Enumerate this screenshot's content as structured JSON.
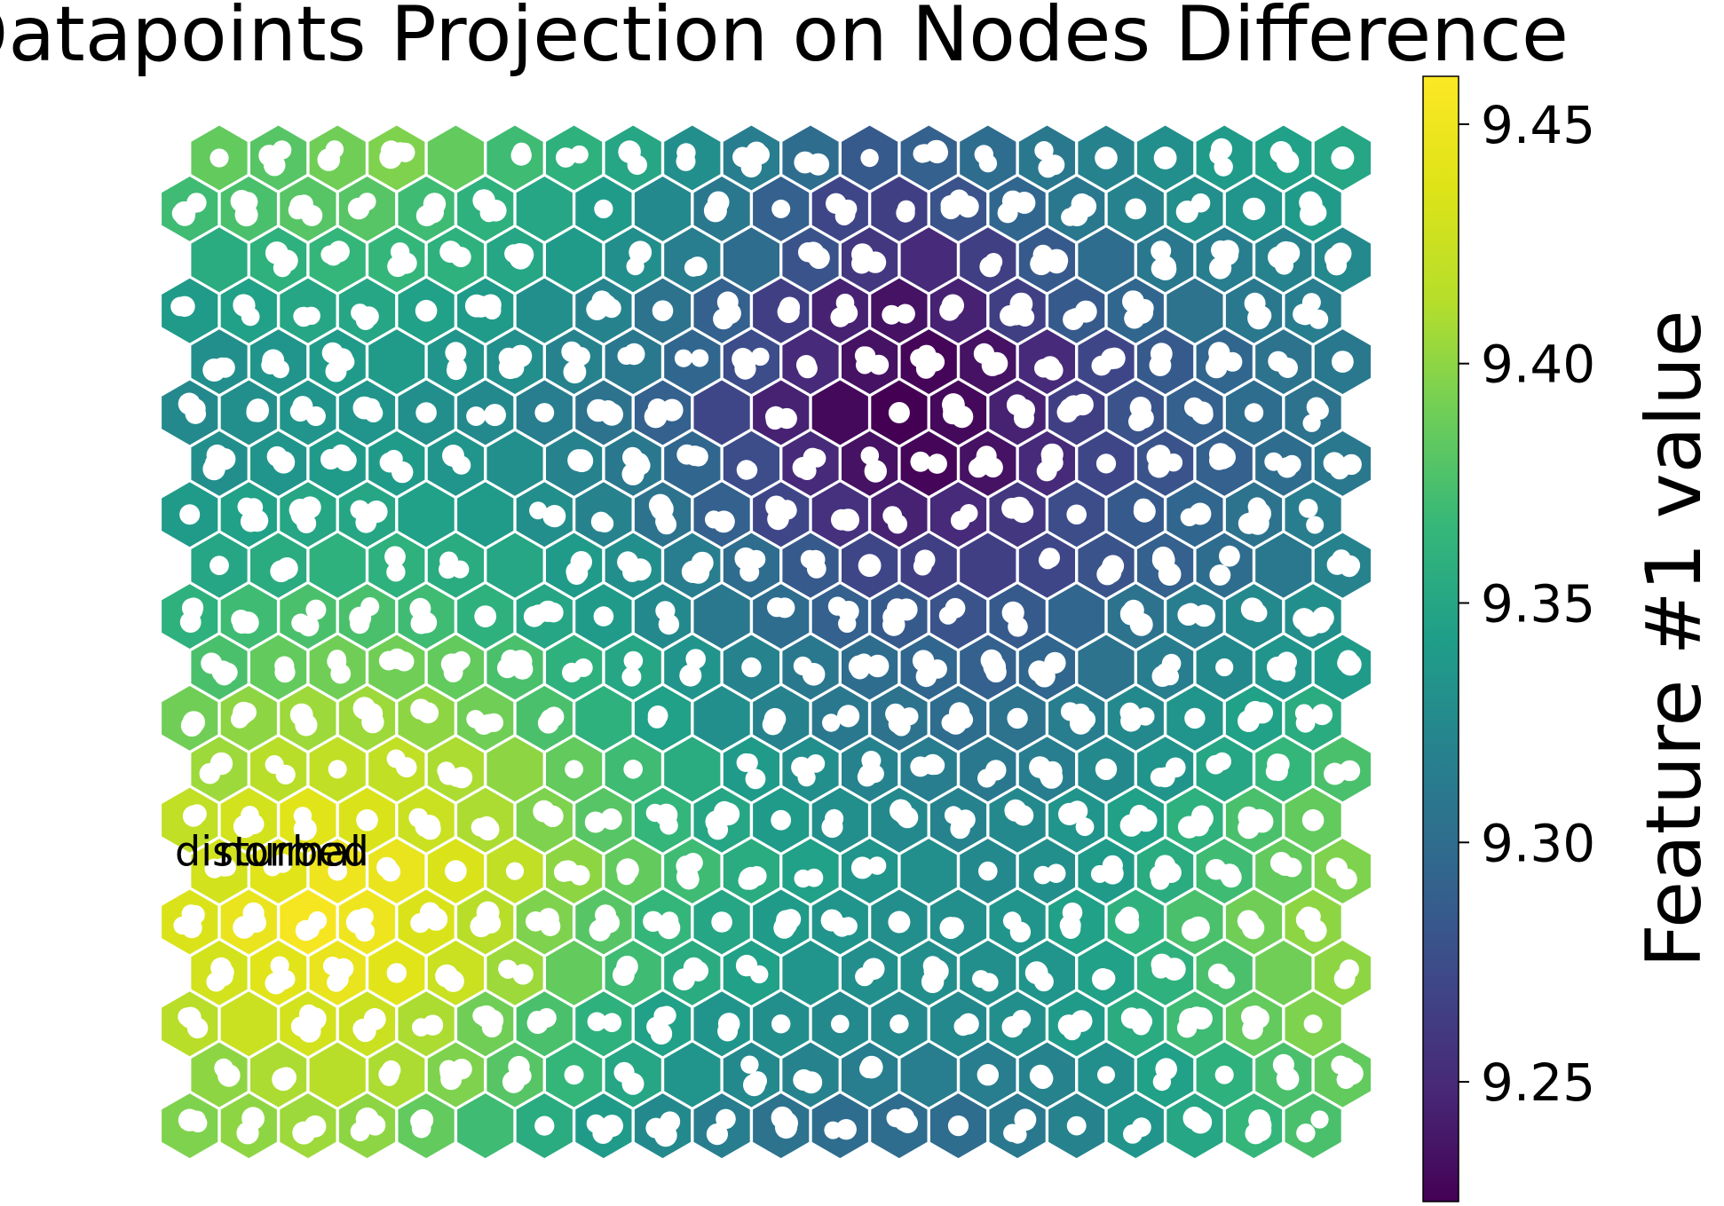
{
  "chart_data": {
    "type": "heatmap",
    "subtype": "hexagonal-som",
    "title": "Datapoints Projection on Nodes Difference",
    "grid": {
      "rows": 20,
      "cols": 20
    },
    "colormap": "viridis",
    "colorbar": {
      "label": "Feature #1 value",
      "range": [
        9.225,
        9.46
      ],
      "ticks": [
        9.25,
        9.3,
        9.35,
        9.4,
        9.45
      ],
      "tick_labels": [
        "9.25",
        "9.30",
        "9.35",
        "9.40",
        "9.45"
      ]
    },
    "node_values": [
      [
        9.385,
        9.38,
        9.39,
        9.395,
        9.385,
        9.37,
        9.36,
        9.35,
        9.33,
        9.315,
        9.3,
        9.285,
        9.29,
        9.3,
        9.31,
        9.32,
        9.33,
        9.34,
        9.345,
        9.35
      ],
      [
        9.37,
        9.375,
        9.38,
        9.38,
        9.37,
        9.36,
        9.35,
        9.34,
        9.325,
        9.31,
        9.29,
        9.27,
        9.265,
        9.28,
        9.295,
        9.31,
        9.32,
        9.33,
        9.335,
        9.34
      ],
      [
        9.355,
        9.36,
        9.365,
        9.365,
        9.36,
        9.35,
        9.34,
        9.33,
        9.315,
        9.3,
        9.28,
        9.26,
        9.25,
        9.265,
        9.285,
        9.3,
        9.31,
        9.315,
        9.32,
        9.325
      ],
      [
        9.34,
        9.345,
        9.35,
        9.35,
        9.345,
        9.34,
        9.33,
        9.32,
        9.305,
        9.29,
        9.265,
        9.245,
        9.235,
        9.245,
        9.265,
        9.285,
        9.295,
        9.305,
        9.31,
        9.315
      ],
      [
        9.33,
        9.335,
        9.34,
        9.34,
        9.335,
        9.33,
        9.32,
        9.31,
        9.295,
        9.275,
        9.25,
        9.235,
        9.228,
        9.235,
        9.25,
        9.27,
        9.285,
        9.295,
        9.305,
        9.31
      ],
      [
        9.325,
        9.33,
        9.335,
        9.335,
        9.33,
        9.325,
        9.315,
        9.305,
        9.29,
        9.27,
        9.245,
        9.23,
        9.225,
        9.23,
        9.245,
        9.265,
        9.28,
        9.29,
        9.3,
        9.305
      ],
      [
        9.33,
        9.335,
        9.34,
        9.34,
        9.335,
        9.33,
        9.32,
        9.31,
        9.295,
        9.275,
        9.25,
        9.235,
        9.228,
        9.235,
        9.25,
        9.27,
        9.28,
        9.29,
        9.3,
        9.31
      ],
      [
        9.34,
        9.345,
        9.35,
        9.35,
        9.345,
        9.34,
        9.33,
        9.32,
        9.305,
        9.29,
        9.27,
        9.255,
        9.245,
        9.25,
        9.26,
        9.275,
        9.285,
        9.295,
        9.305,
        9.315
      ],
      [
        9.35,
        9.355,
        9.36,
        9.36,
        9.355,
        9.35,
        9.34,
        9.33,
        9.315,
        9.3,
        9.285,
        9.27,
        9.265,
        9.265,
        9.27,
        9.28,
        9.29,
        9.3,
        9.31,
        9.32
      ],
      [
        9.36,
        9.37,
        9.375,
        9.375,
        9.37,
        9.36,
        9.35,
        9.34,
        9.325,
        9.31,
        9.3,
        9.29,
        9.285,
        9.28,
        9.285,
        9.295,
        9.305,
        9.315,
        9.325,
        9.33
      ],
      [
        9.375,
        9.385,
        9.39,
        9.39,
        9.385,
        9.375,
        9.36,
        9.35,
        9.335,
        9.32,
        9.31,
        9.3,
        9.295,
        9.29,
        9.295,
        9.305,
        9.315,
        9.325,
        9.335,
        9.34
      ],
      [
        9.39,
        9.4,
        9.405,
        9.405,
        9.4,
        9.39,
        9.375,
        9.36,
        9.345,
        9.33,
        9.32,
        9.31,
        9.305,
        9.3,
        9.305,
        9.315,
        9.325,
        9.335,
        9.345,
        9.355
      ],
      [
        9.405,
        9.415,
        9.42,
        9.42,
        9.41,
        9.4,
        9.385,
        9.37,
        9.355,
        9.34,
        9.33,
        9.32,
        9.315,
        9.31,
        9.315,
        9.325,
        9.335,
        9.35,
        9.365,
        9.375
      ],
      [
        9.42,
        9.43,
        9.44,
        9.435,
        9.425,
        9.41,
        9.395,
        9.38,
        9.365,
        9.35,
        9.34,
        9.33,
        9.325,
        9.32,
        9.325,
        9.335,
        9.345,
        9.36,
        9.375,
        9.385
      ],
      [
        9.43,
        9.44,
        9.45,
        9.445,
        9.435,
        9.42,
        9.4,
        9.385,
        9.37,
        9.355,
        9.345,
        9.335,
        9.33,
        9.325,
        9.33,
        9.34,
        9.355,
        9.37,
        9.385,
        9.395
      ],
      [
        9.435,
        9.445,
        9.455,
        9.45,
        9.435,
        9.415,
        9.395,
        9.38,
        9.365,
        9.35,
        9.34,
        9.335,
        9.33,
        9.33,
        9.335,
        9.345,
        9.36,
        9.375,
        9.39,
        9.4
      ],
      [
        9.43,
        9.44,
        9.445,
        9.44,
        9.425,
        9.405,
        9.385,
        9.37,
        9.355,
        9.345,
        9.335,
        9.33,
        9.33,
        9.33,
        9.335,
        9.345,
        9.36,
        9.375,
        9.39,
        9.4
      ],
      [
        9.415,
        9.425,
        9.43,
        9.425,
        9.41,
        9.39,
        9.375,
        9.36,
        9.345,
        9.335,
        9.33,
        9.325,
        9.325,
        9.325,
        9.33,
        9.34,
        9.355,
        9.37,
        9.385,
        9.395
      ],
      [
        9.4,
        9.41,
        9.415,
        9.41,
        9.395,
        9.38,
        9.365,
        9.35,
        9.335,
        9.325,
        9.32,
        9.315,
        9.315,
        9.315,
        9.32,
        9.33,
        9.345,
        9.36,
        9.375,
        9.385
      ],
      [
        9.395,
        9.4,
        9.405,
        9.4,
        9.385,
        9.37,
        9.355,
        9.34,
        9.325,
        9.315,
        9.305,
        9.3,
        9.3,
        9.3,
        9.31,
        9.32,
        9.335,
        9.35,
        9.365,
        9.375
      ]
    ],
    "annotations": [
      {
        "text": "disturbed",
        "row": 14,
        "col": 0
      },
      {
        "text": "normal",
        "row": 14,
        "col": 1
      }
    ]
  }
}
